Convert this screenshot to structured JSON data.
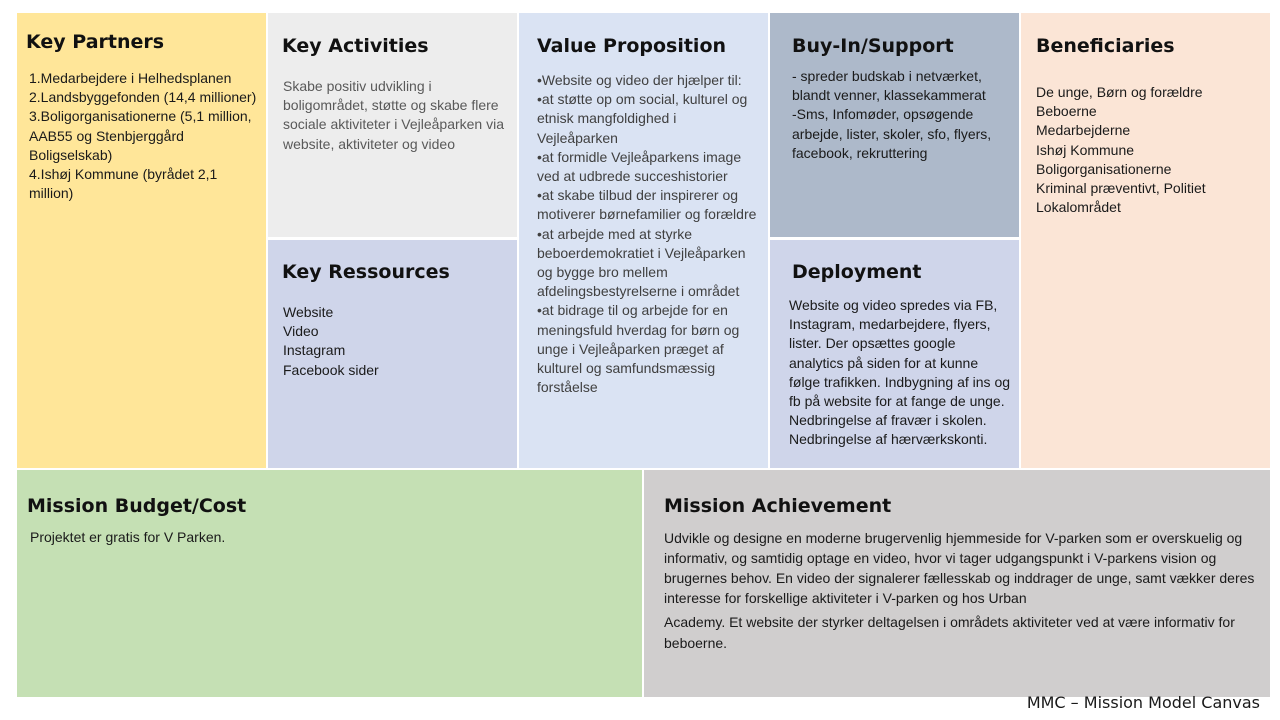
{
  "key_partners": {
    "title": "Key Partners",
    "text": "1.Medarbejdere i Helhedsplanen\n2.Landsbyggefonden (14,4 millioner)\n3.Boligorganisationerne (5,1 million, AAB55 og Stenbjerggård Boligselskab)\n4.Ishøj Kommune (byrådet 2,1 million)"
  },
  "key_activities": {
    "title": "Key Activities",
    "text": "Skabe positiv udvikling i boligområdet, støtte og skabe flere sociale aktiviteter i Vejleåparken via website, aktiviteter og video"
  },
  "key_resources": {
    "title": "Key Ressources",
    "text": "Website\nVideo\nInstagram\nFacebook sider"
  },
  "value_proposition": {
    "title": "Value Proposition",
    "text": "•Website og video der hjælper til:\n•at støtte op om social, kulturel og etnisk mangfoldighed i Vejleåparken\n•at formidle Vejleåparkens image ved at udbrede succeshistorier\n•at skabe tilbud der inspirerer og motiverer børnefamilier og forældre\n•at arbejde med at styrke beboerdemokratiet i Vejleåparken og bygge bro mellem afdelingsbestyrelserne i området\n•at bidrage til og arbejde for en meningsfuld hverdag for børn og unge i Vejleåparken præget af kulturel og samfundsmæssig forståelse"
  },
  "buy_in_support": {
    "title": "Buy-In/Support",
    "text": "- spreder budskab i netværket, blandt venner, klassekammerat\n-Sms, Infomøder, opsøgende arbejde, lister, skoler, sfo, flyers, facebook, rekruttering"
  },
  "deployment": {
    "title": "Deployment",
    "text": "Website og video spredes via FB, Instagram, medarbejdere, flyers, lister. Der opsættes google analytics på siden for at kunne følge trafikken. Indbygning af ins og fb på website for at fange de unge. Nedbringelse af fravær i skolen. Nedbringelse af hærværkskonti."
  },
  "beneficiaries": {
    "title": "Beneficiaries",
    "text": "De unge, Børn og forældre\nBeboerne\nMedarbejderne\nIshøj Kommune\nBoligorganisationerne\nKriminal præventivt, Politiet\nLokalområdet"
  },
  "mission_budget": {
    "title": "Mission Budget/Cost",
    "text": "Projektet er gratis for V Parken."
  },
  "mission_achievement": {
    "title": "Mission Achievement",
    "text_1": "Udvikle og designe en moderne brugervenlig hjemmeside for V-parken som er overskuelig og informativ, og samtidig optage en video, hvor vi tager udgangspunkt i V-parkens vision og brugernes behov. En video der signalerer fællesskab og inddrager de unge, samt vækker deres interesse for forskellige aktiviteter i V-parken og hos Urban",
    "text_2": "Academy. Et website der styrker deltagelsen i områdets aktiviteter ved at være informativ for beboerne."
  },
  "footer": "MMC – Mission Model Canvas"
}
